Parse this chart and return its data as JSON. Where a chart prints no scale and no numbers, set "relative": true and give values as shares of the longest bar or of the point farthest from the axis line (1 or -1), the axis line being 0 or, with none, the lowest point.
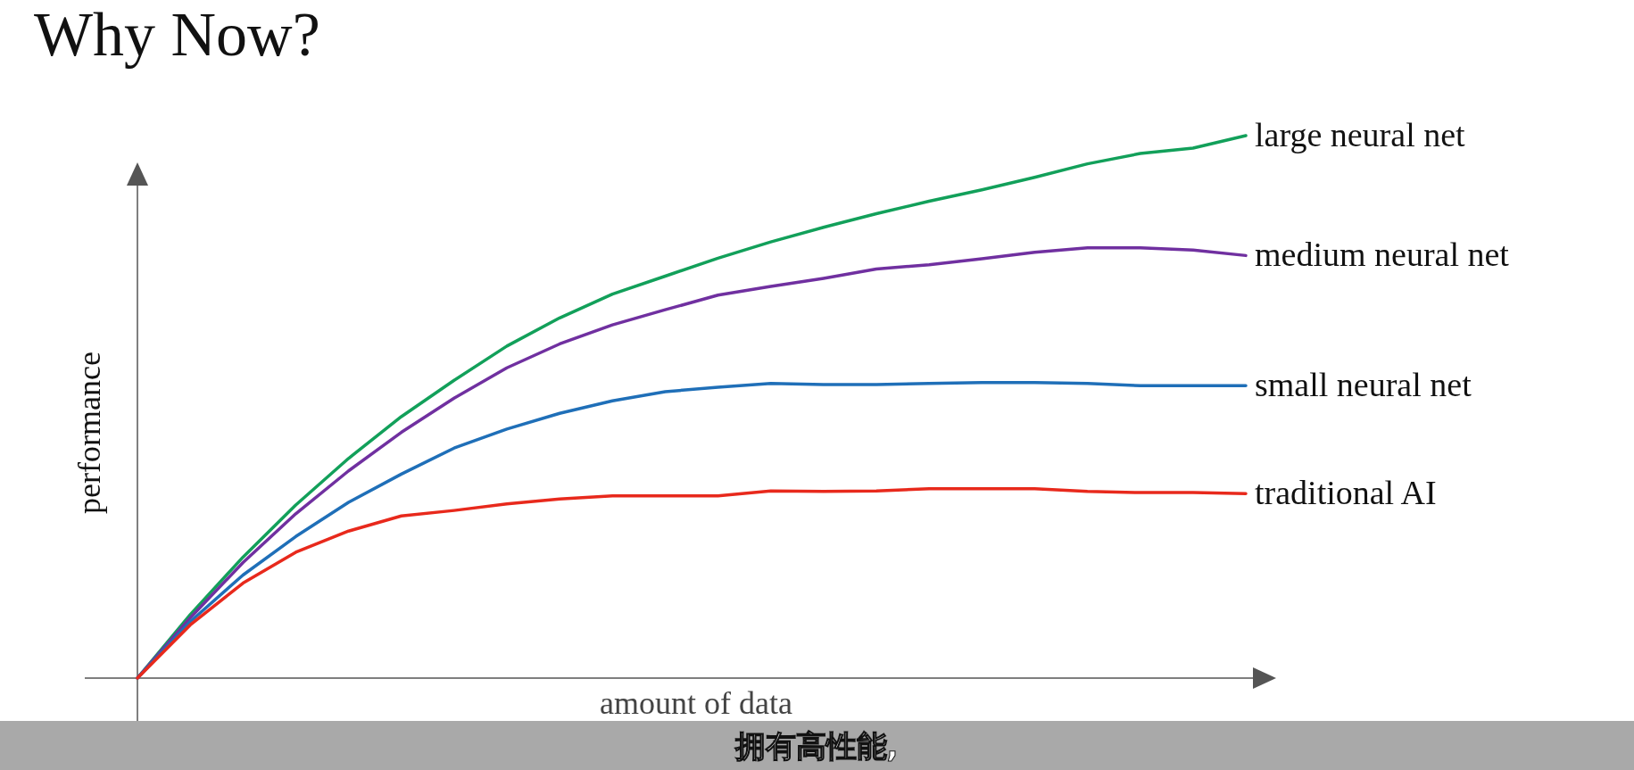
{
  "chart_data": {
    "type": "line",
    "title": "Why Now?",
    "xlabel": "amount of data",
    "ylabel": "performance",
    "relative": true,
    "categories": [
      null,
      null,
      null,
      null,
      null,
      null,
      null,
      null,
      null,
      null,
      null,
      null,
      null,
      null,
      null,
      null,
      null,
      null,
      null,
      null,
      null,
      null
    ],
    "series": [
      {
        "name": "large neural net",
        "color": "#12a05a",
        "values": [
          0,
          0.117,
          0.223,
          0.319,
          0.405,
          0.482,
          0.549,
          0.612,
          0.664,
          0.708,
          0.741,
          0.774,
          0.804,
          0.831,
          0.856,
          0.879,
          0.9,
          0.923,
          0.948,
          0.967,
          0.977,
          1
        ]
      },
      {
        "name": "medium neural net",
        "color": "#7030a0",
        "values": [
          0,
          0.111,
          0.213,
          0.303,
          0.382,
          0.453,
          0.516,
          0.572,
          0.616,
          0.651,
          0.679,
          0.706,
          0.722,
          0.737,
          0.754,
          0.762,
          0.773,
          0.785,
          0.793,
          0.793,
          0.789,
          0.779
        ]
      },
      {
        "name": "small neural net",
        "color": "#1f6fb8",
        "values": [
          0,
          0.104,
          0.19,
          0.261,
          0.324,
          0.376,
          0.424,
          0.459,
          0.488,
          0.511,
          0.528,
          0.536,
          0.543,
          0.541,
          0.541,
          0.543,
          0.545,
          0.545,
          0.543,
          0.539,
          0.539,
          0.539
        ]
      },
      {
        "name": "traditional AI",
        "color": "#e8291c",
        "values": [
          0,
          0.098,
          0.175,
          0.232,
          0.271,
          0.299,
          0.309,
          0.321,
          0.33,
          0.336,
          0.336,
          0.336,
          0.345,
          0.344,
          0.345,
          0.349,
          0.349,
          0.349,
          0.344,
          0.342,
          0.342,
          0.34
        ]
      }
    ],
    "annotations": [
      "拥有高性能,"
    ]
  }
}
